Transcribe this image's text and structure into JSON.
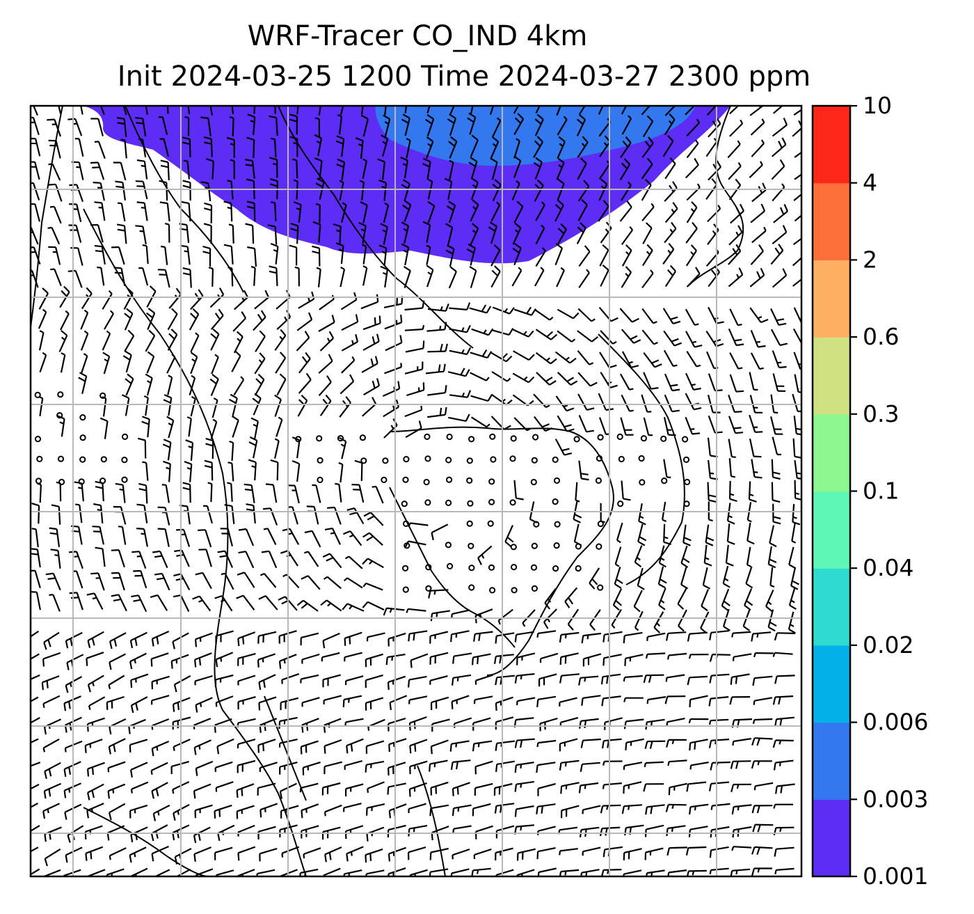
{
  "title": {
    "line1": "WRF-Tracer CO_IND 4km",
    "line2": "Init 2024-03-25 1200 Time 2024-03-27 2300 ppm"
  },
  "colorbar": {
    "levels": [
      "0.001",
      "0.003",
      "0.006",
      "0.02",
      "0.04",
      "0.1",
      "0.3",
      "0.6",
      "2",
      "4",
      "10"
    ],
    "colors": [
      "#5d2cf5",
      "#3478f0",
      "#03b1e8",
      "#2edbd0",
      "#5ef7b6",
      "#8ef790",
      "#cfe180",
      "#ffaf61",
      "#ff6f3a",
      "#ff2719"
    ]
  },
  "map": {
    "plume_colors": {
      "low": "#5d2cf5",
      "mid": "#3478f0"
    },
    "barb_color": "#000000",
    "grid_color": "#b8b8b8"
  }
}
